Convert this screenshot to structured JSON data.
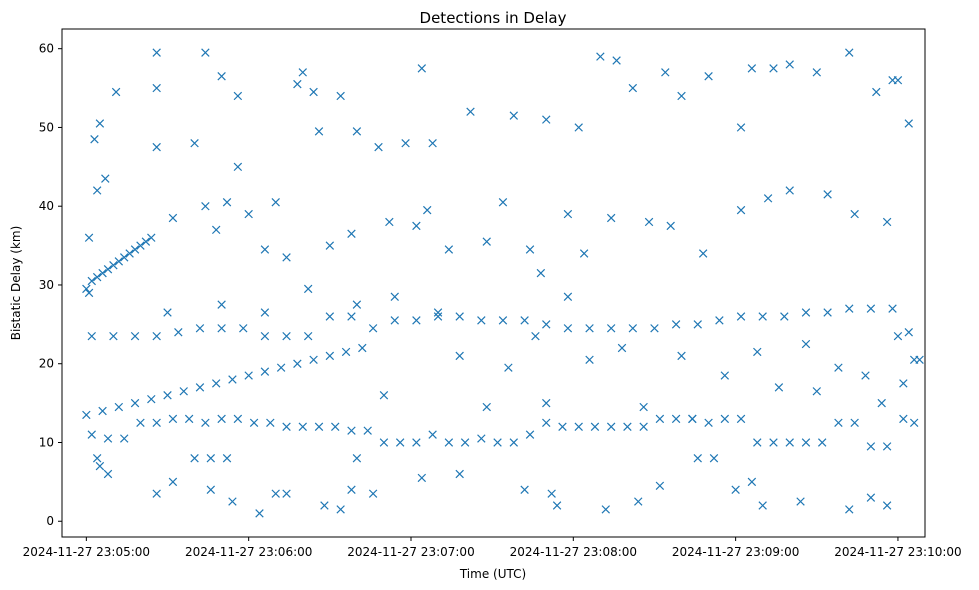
{
  "chart_data": {
    "type": "scatter",
    "title": "Detections in Delay",
    "xlabel": "Time (UTC)",
    "ylabel": "Bistatic Delay (km)",
    "x_unit": "datetime UTC",
    "xlim": [
      "2024-11-27 23:04:51",
      "2024-11-27 23:10:10"
    ],
    "ylim": [
      -2,
      62.5
    ],
    "x_ticks": [
      "2024-11-27 23:05:00",
      "2024-11-27 23:06:00",
      "2024-11-27 23:07:00",
      "2024-11-27 23:08:00",
      "2024-11-27 23:09:00",
      "2024-11-27 23:10:00"
    ],
    "y_ticks": [
      0,
      10,
      20,
      30,
      40,
      50,
      60
    ],
    "marker": "x",
    "grid": false,
    "legend": "none",
    "colors": {
      "series": "#1f77b4",
      "axes": "#000000",
      "background": "#ffffff"
    },
    "points": [
      [
        "2024-11-27 23:05:00",
        29.5
      ],
      [
        "2024-11-27 23:05:01",
        29.0
      ],
      [
        "2024-11-27 23:05:02",
        30.5
      ],
      [
        "2024-11-27 23:05:04",
        31.0
      ],
      [
        "2024-11-27 23:05:06",
        31.5
      ],
      [
        "2024-11-27 23:05:08",
        32.0
      ],
      [
        "2024-11-27 23:05:10",
        32.5
      ],
      [
        "2024-11-27 23:05:12",
        33.0
      ],
      [
        "2024-11-27 23:05:14",
        33.5
      ],
      [
        "2024-11-27 23:05:16",
        34.0
      ],
      [
        "2024-11-27 23:05:18",
        34.5
      ],
      [
        "2024-11-27 23:05:20",
        35.0
      ],
      [
        "2024-11-27 23:05:22",
        35.5
      ],
      [
        "2024-11-27 23:05:24",
        36.0
      ],
      [
        "2024-11-27 23:05:00",
        13.5
      ],
      [
        "2024-11-27 23:05:06",
        14.0
      ],
      [
        "2024-11-27 23:05:12",
        14.5
      ],
      [
        "2024-11-27 23:05:18",
        15.0
      ],
      [
        "2024-11-27 23:05:24",
        15.5
      ],
      [
        "2024-11-27 23:05:30",
        16.0
      ],
      [
        "2024-11-27 23:05:36",
        16.5
      ],
      [
        "2024-11-27 23:05:42",
        17.0
      ],
      [
        "2024-11-27 23:05:48",
        17.5
      ],
      [
        "2024-11-27 23:05:54",
        18.0
      ],
      [
        "2024-11-27 23:06:00",
        18.5
      ],
      [
        "2024-11-27 23:06:06",
        19.0
      ],
      [
        "2024-11-27 23:06:12",
        19.5
      ],
      [
        "2024-11-27 23:06:18",
        20.0
      ],
      [
        "2024-11-27 23:06:24",
        20.5
      ],
      [
        "2024-11-27 23:06:30",
        21.0
      ],
      [
        "2024-11-27 23:06:36",
        21.5
      ],
      [
        "2024-11-27 23:06:42",
        22.0
      ],
      [
        "2024-11-27 23:05:02",
        23.5
      ],
      [
        "2024-11-27 23:05:10",
        23.5
      ],
      [
        "2024-11-27 23:05:18",
        23.5
      ],
      [
        "2024-11-27 23:05:26",
        23.5
      ],
      [
        "2024-11-27 23:05:34",
        24.0
      ],
      [
        "2024-11-27 23:05:42",
        24.5
      ],
      [
        "2024-11-27 23:05:50",
        24.5
      ],
      [
        "2024-11-27 23:05:58",
        24.5
      ],
      [
        "2024-11-27 23:06:06",
        23.5
      ],
      [
        "2024-11-27 23:06:14",
        23.5
      ],
      [
        "2024-11-27 23:06:22",
        23.5
      ],
      [
        "2024-11-27 23:06:30",
        26.0
      ],
      [
        "2024-11-27 23:06:38",
        26.0
      ],
      [
        "2024-11-27 23:06:46",
        24.5
      ],
      [
        "2024-11-27 23:06:54",
        25.5
      ],
      [
        "2024-11-27 23:07:02",
        25.5
      ],
      [
        "2024-11-27 23:07:10",
        26.0
      ],
      [
        "2024-11-27 23:07:18",
        26.0
      ],
      [
        "2024-11-27 23:07:26",
        25.5
      ],
      [
        "2024-11-27 23:07:34",
        25.5
      ],
      [
        "2024-11-27 23:07:42",
        25.5
      ],
      [
        "2024-11-27 23:07:50",
        25.0
      ],
      [
        "2024-11-27 23:07:58",
        24.5
      ],
      [
        "2024-11-27 23:08:06",
        24.5
      ],
      [
        "2024-11-27 23:08:14",
        24.5
      ],
      [
        "2024-11-27 23:08:22",
        24.5
      ],
      [
        "2024-11-27 23:08:30",
        24.5
      ],
      [
        "2024-11-27 23:08:38",
        25.0
      ],
      [
        "2024-11-27 23:08:46",
        25.0
      ],
      [
        "2024-11-27 23:08:54",
        25.5
      ],
      [
        "2024-11-27 23:09:02",
        26.0
      ],
      [
        "2024-11-27 23:09:10",
        26.0
      ],
      [
        "2024-11-27 23:09:18",
        26.0
      ],
      [
        "2024-11-27 23:09:26",
        26.5
      ],
      [
        "2024-11-27 23:09:34",
        26.5
      ],
      [
        "2024-11-27 23:09:42",
        27.0
      ],
      [
        "2024-11-27 23:09:50",
        27.0
      ],
      [
        "2024-11-27 23:09:58",
        27.0
      ],
      [
        "2024-11-27 23:10:00",
        23.5
      ],
      [
        "2024-11-27 23:10:04",
        24.0
      ],
      [
        "2024-11-27 23:10:06",
        20.5
      ],
      [
        "2024-11-27 23:10:08",
        20.5
      ],
      [
        "2024-11-27 23:05:02",
        11.0
      ],
      [
        "2024-11-27 23:05:08",
        10.5
      ],
      [
        "2024-11-27 23:05:14",
        10.5
      ],
      [
        "2024-11-27 23:05:20",
        12.5
      ],
      [
        "2024-11-27 23:05:26",
        12.5
      ],
      [
        "2024-11-27 23:05:32",
        13.0
      ],
      [
        "2024-11-27 23:05:38",
        13.0
      ],
      [
        "2024-11-27 23:05:44",
        12.5
      ],
      [
        "2024-11-27 23:05:50",
        13.0
      ],
      [
        "2024-11-27 23:05:56",
        13.0
      ],
      [
        "2024-11-27 23:06:02",
        12.5
      ],
      [
        "2024-11-27 23:06:08",
        12.5
      ],
      [
        "2024-11-27 23:06:14",
        12.0
      ],
      [
        "2024-11-27 23:06:20",
        12.0
      ],
      [
        "2024-11-27 23:06:26",
        12.0
      ],
      [
        "2024-11-27 23:06:32",
        12.0
      ],
      [
        "2024-11-27 23:06:38",
        11.5
      ],
      [
        "2024-11-27 23:06:44",
        11.5
      ],
      [
        "2024-11-27 23:06:50",
        10.0
      ],
      [
        "2024-11-27 23:06:56",
        10.0
      ],
      [
        "2024-11-27 23:07:02",
        10.0
      ],
      [
        "2024-11-27 23:07:08",
        11.0
      ],
      [
        "2024-11-27 23:07:14",
        10.0
      ],
      [
        "2024-11-27 23:07:20",
        10.0
      ],
      [
        "2024-11-27 23:07:26",
        10.5
      ],
      [
        "2024-11-27 23:07:32",
        10.0
      ],
      [
        "2024-11-27 23:07:38",
        10.0
      ],
      [
        "2024-11-27 23:07:44",
        11.0
      ],
      [
        "2024-11-27 23:07:50",
        12.5
      ],
      [
        "2024-11-27 23:07:56",
        12.0
      ],
      [
        "2024-11-27 23:08:02",
        12.0
      ],
      [
        "2024-11-27 23:08:08",
        12.0
      ],
      [
        "2024-11-27 23:08:14",
        12.0
      ],
      [
        "2024-11-27 23:08:20",
        12.0
      ],
      [
        "2024-11-27 23:08:26",
        12.0
      ],
      [
        "2024-11-27 23:08:32",
        13.0
      ],
      [
        "2024-11-27 23:08:38",
        13.0
      ],
      [
        "2024-11-27 23:08:44",
        13.0
      ],
      [
        "2024-11-27 23:08:50",
        12.5
      ],
      [
        "2024-11-27 23:08:56",
        13.0
      ],
      [
        "2024-11-27 23:09:02",
        13.0
      ],
      [
        "2024-11-27 23:09:08",
        10.0
      ],
      [
        "2024-11-27 23:09:14",
        10.0
      ],
      [
        "2024-11-27 23:09:20",
        10.0
      ],
      [
        "2024-11-27 23:09:26",
        10.0
      ],
      [
        "2024-11-27 23:09:32",
        10.0
      ],
      [
        "2024-11-27 23:09:38",
        12.5
      ],
      [
        "2024-11-27 23:09:44",
        12.5
      ],
      [
        "2024-11-27 23:09:50",
        9.5
      ],
      [
        "2024-11-27 23:09:56",
        9.5
      ],
      [
        "2024-11-27 23:10:02",
        13.0
      ],
      [
        "2024-11-27 23:10:06",
        12.5
      ],
      [
        "2024-11-27 23:05:04",
        8.0
      ],
      [
        "2024-11-27 23:05:40",
        8.0
      ],
      [
        "2024-11-27 23:05:46",
        8.0
      ],
      [
        "2024-11-27 23:05:52",
        8.0
      ],
      [
        "2024-11-27 23:06:40",
        8.0
      ],
      [
        "2024-11-27 23:08:46",
        8.0
      ],
      [
        "2024-11-27 23:08:52",
        8.0
      ],
      [
        "2024-11-27 23:05:01",
        36.0
      ],
      [
        "2024-11-27 23:05:03",
        48.5
      ],
      [
        "2024-11-27 23:05:05",
        50.5
      ],
      [
        "2024-11-27 23:05:07",
        43.5
      ],
      [
        "2024-11-27 23:05:11",
        54.5
      ],
      [
        "2024-11-27 23:05:26",
        55.0
      ],
      [
        "2024-11-27 23:05:26",
        59.5
      ],
      [
        "2024-11-27 23:05:26",
        47.5
      ],
      [
        "2024-11-27 23:05:32",
        38.5
      ],
      [
        "2024-11-27 23:05:40",
        48.0
      ],
      [
        "2024-11-27 23:05:44",
        59.5
      ],
      [
        "2024-11-27 23:05:50",
        56.5
      ],
      [
        "2024-11-27 23:05:56",
        45.0
      ],
      [
        "2024-11-27 23:05:56",
        54.0
      ],
      [
        "2024-11-27 23:05:52",
        40.5
      ],
      [
        "2024-11-27 23:06:10",
        40.5
      ],
      [
        "2024-11-27 23:06:18",
        55.5
      ],
      [
        "2024-11-27 23:06:20",
        57.0
      ],
      [
        "2024-11-27 23:06:24",
        54.5
      ],
      [
        "2024-11-27 23:06:26",
        49.5
      ],
      [
        "2024-11-27 23:06:34",
        54.0
      ],
      [
        "2024-11-27 23:06:40",
        49.5
      ],
      [
        "2024-11-27 23:06:48",
        47.5
      ],
      [
        "2024-11-27 23:06:58",
        48.0
      ],
      [
        "2024-11-27 23:07:04",
        57.5
      ],
      [
        "2024-11-27 23:07:08",
        48.0
      ],
      [
        "2024-11-27 23:07:22",
        52.0
      ],
      [
        "2024-11-27 23:07:38",
        51.5
      ],
      [
        "2024-11-27 23:07:50",
        51.0
      ],
      [
        "2024-11-27 23:08:02",
        50.0
      ],
      [
        "2024-11-27 23:08:10",
        59.0
      ],
      [
        "2024-11-27 23:08:16",
        58.5
      ],
      [
        "2024-11-27 23:08:22",
        55.0
      ],
      [
        "2024-11-27 23:08:34",
        57.0
      ],
      [
        "2024-11-27 23:08:40",
        54.0
      ],
      [
        "2024-11-27 23:08:50",
        56.5
      ],
      [
        "2024-11-27 23:09:02",
        50.0
      ],
      [
        "2024-11-27 23:09:06",
        57.5
      ],
      [
        "2024-11-27 23:09:14",
        57.5
      ],
      [
        "2024-11-27 23:09:20",
        58.0
      ],
      [
        "2024-11-27 23:09:30",
        57.0
      ],
      [
        "2024-11-27 23:09:42",
        59.5
      ],
      [
        "2024-11-27 23:09:52",
        54.5
      ],
      [
        "2024-11-27 23:09:58",
        56.0
      ],
      [
        "2024-11-27 23:10:00",
        56.0
      ],
      [
        "2024-11-27 23:10:04",
        50.5
      ],
      [
        "2024-11-27 23:05:04",
        42.0
      ],
      [
        "2024-11-27 23:05:44",
        40.0
      ],
      [
        "2024-11-27 23:05:48",
        37.0
      ],
      [
        "2024-11-27 23:06:00",
        39.0
      ],
      [
        "2024-11-27 23:06:06",
        34.5
      ],
      [
        "2024-11-27 23:06:14",
        33.5
      ],
      [
        "2024-11-27 23:06:30",
        35.0
      ],
      [
        "2024-11-27 23:06:38",
        36.5
      ],
      [
        "2024-11-27 23:06:52",
        38.0
      ],
      [
        "2024-11-27 23:07:02",
        37.5
      ],
      [
        "2024-11-27 23:07:06",
        39.5
      ],
      [
        "2024-11-27 23:07:14",
        34.5
      ],
      [
        "2024-11-27 23:07:28",
        35.5
      ],
      [
        "2024-11-27 23:07:34",
        40.5
      ],
      [
        "2024-11-27 23:07:44",
        34.5
      ],
      [
        "2024-11-27 23:07:48",
        31.5
      ],
      [
        "2024-11-27 23:07:58",
        39.0
      ],
      [
        "2024-11-27 23:08:04",
        34.0
      ],
      [
        "2024-11-27 23:08:14",
        38.5
      ],
      [
        "2024-11-27 23:08:28",
        38.0
      ],
      [
        "2024-11-27 23:08:36",
        37.5
      ],
      [
        "2024-11-27 23:08:48",
        34.0
      ],
      [
        "2024-11-27 23:09:02",
        39.5
      ],
      [
        "2024-11-27 23:09:12",
        41.0
      ],
      [
        "2024-11-27 23:09:20",
        42.0
      ],
      [
        "2024-11-27 23:09:34",
        41.5
      ],
      [
        "2024-11-27 23:09:44",
        39.0
      ],
      [
        "2024-11-27 23:09:56",
        38.0
      ],
      [
        "2024-11-27 23:05:05",
        7.0
      ],
      [
        "2024-11-27 23:05:08",
        6.0
      ],
      [
        "2024-11-27 23:05:26",
        3.5
      ],
      [
        "2024-11-27 23:05:32",
        5.0
      ],
      [
        "2024-11-27 23:05:46",
        4.0
      ],
      [
        "2024-11-27 23:05:54",
        2.5
      ],
      [
        "2024-11-27 23:06:04",
        1.0
      ],
      [
        "2024-11-27 23:06:10",
        3.5
      ],
      [
        "2024-11-27 23:06:14",
        3.5
      ],
      [
        "2024-11-27 23:06:28",
        2.0
      ],
      [
        "2024-11-27 23:06:34",
        1.5
      ],
      [
        "2024-11-27 23:06:38",
        4.0
      ],
      [
        "2024-11-27 23:06:46",
        3.5
      ],
      [
        "2024-11-27 23:07:04",
        5.5
      ],
      [
        "2024-11-27 23:07:18",
        6.0
      ],
      [
        "2024-11-27 23:07:42",
        4.0
      ],
      [
        "2024-11-27 23:07:52",
        3.5
      ],
      [
        "2024-11-27 23:07:54",
        2.0
      ],
      [
        "2024-11-27 23:08:12",
        1.5
      ],
      [
        "2024-11-27 23:08:24",
        2.5
      ],
      [
        "2024-11-27 23:08:32",
        4.5
      ],
      [
        "2024-11-27 23:09:00",
        4.0
      ],
      [
        "2024-11-27 23:09:06",
        5.0
      ],
      [
        "2024-11-27 23:09:10",
        2.0
      ],
      [
        "2024-11-27 23:09:24",
        2.5
      ],
      [
        "2024-11-27 23:09:42",
        1.5
      ],
      [
        "2024-11-27 23:09:50",
        3.0
      ],
      [
        "2024-11-27 23:09:56",
        2.0
      ],
      [
        "2024-11-27 23:05:30",
        26.5
      ],
      [
        "2024-11-27 23:05:50",
        27.5
      ],
      [
        "2024-11-27 23:06:06",
        26.5
      ],
      [
        "2024-11-27 23:06:22",
        29.5
      ],
      [
        "2024-11-27 23:06:40",
        27.5
      ],
      [
        "2024-11-27 23:06:54",
        28.5
      ],
      [
        "2024-11-27 23:07:10",
        26.5
      ],
      [
        "2024-11-27 23:07:18",
        21.0
      ],
      [
        "2024-11-27 23:07:36",
        19.5
      ],
      [
        "2024-11-27 23:07:46",
        23.5
      ],
      [
        "2024-11-27 23:07:58",
        28.5
      ],
      [
        "2024-11-27 23:08:06",
        20.5
      ],
      [
        "2024-11-27 23:08:18",
        22.0
      ],
      [
        "2024-11-27 23:08:40",
        21.0
      ],
      [
        "2024-11-27 23:08:56",
        18.5
      ],
      [
        "2024-11-27 23:09:08",
        21.5
      ],
      [
        "2024-11-27 23:09:16",
        17.0
      ],
      [
        "2024-11-27 23:09:26",
        22.5
      ],
      [
        "2024-11-27 23:09:38",
        19.5
      ],
      [
        "2024-11-27 23:09:48",
        18.5
      ],
      [
        "2024-11-27 23:09:54",
        15.0
      ],
      [
        "2024-11-27 23:10:02",
        17.5
      ],
      [
        "2024-11-27 23:06:50",
        16.0
      ],
      [
        "2024-11-27 23:07:28",
        14.5
      ],
      [
        "2024-11-27 23:07:50",
        15.0
      ],
      [
        "2024-11-27 23:08:26",
        14.5
      ],
      [
        "2024-11-27 23:08:44",
        13.0
      ],
      [
        "2024-11-27 23:09:30",
        16.5
      ]
    ]
  }
}
